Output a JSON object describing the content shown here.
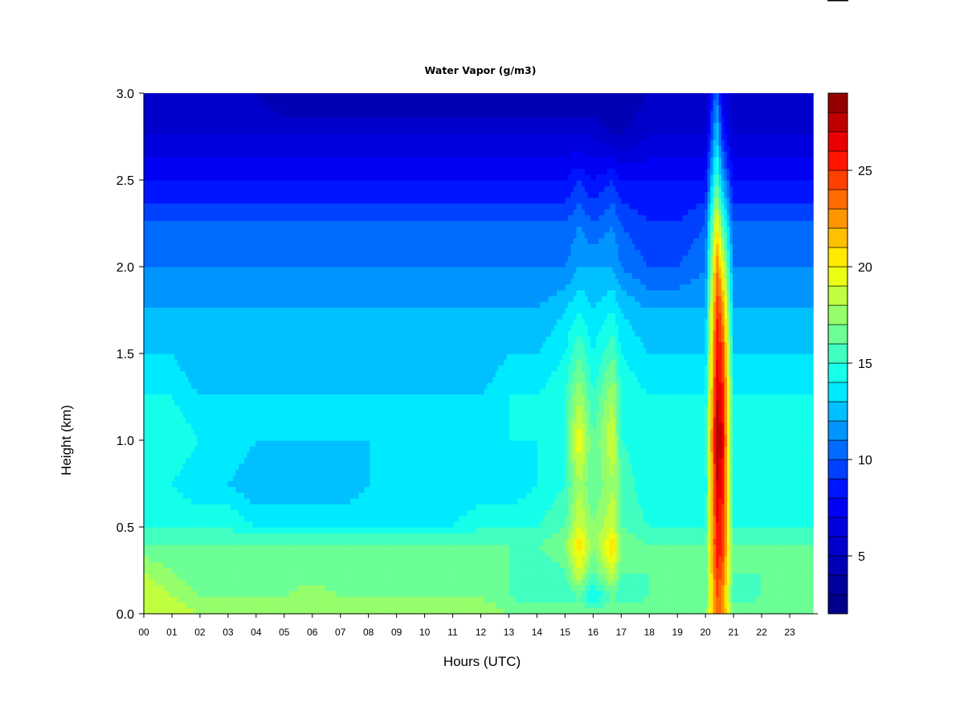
{
  "chart_data": {
    "type": "heatmap",
    "title": "Water Vapor (g/m3)",
    "xlabel": "Hours (UTC)",
    "ylabel": "Height (km)",
    "xlim": [
      0,
      24
    ],
    "ylim": [
      0.0,
      3.0
    ],
    "x_ticks": [
      {
        "value": 0,
        "label": "00"
      },
      {
        "value": 1,
        "label": "01"
      },
      {
        "value": 2,
        "label": "02"
      },
      {
        "value": 3,
        "label": "03"
      },
      {
        "value": 4,
        "label": "04"
      },
      {
        "value": 5,
        "label": "05"
      },
      {
        "value": 6,
        "label": "06"
      },
      {
        "value": 7,
        "label": "07"
      },
      {
        "value": 8,
        "label": "08"
      },
      {
        "value": 9,
        "label": "09"
      },
      {
        "value": 10,
        "label": "10"
      },
      {
        "value": 11,
        "label": "11"
      },
      {
        "value": 12,
        "label": "12"
      },
      {
        "value": 13,
        "label": "13"
      },
      {
        "value": 14,
        "label": "14"
      },
      {
        "value": 15,
        "label": "15"
      },
      {
        "value": 16,
        "label": "16"
      },
      {
        "value": 17,
        "label": "17"
      },
      {
        "value": 18,
        "label": "18"
      },
      {
        "value": 19,
        "label": "19"
      },
      {
        "value": 20,
        "label": "20"
      },
      {
        "value": 21,
        "label": "21"
      },
      {
        "value": 22,
        "label": "22"
      },
      {
        "value": 23,
        "label": "23"
      }
    ],
    "y_ticks": [
      {
        "value": 0.0,
        "label": "0.0"
      },
      {
        "value": 0.5,
        "label": "0.5"
      },
      {
        "value": 1.0,
        "label": "1.0"
      },
      {
        "value": 1.5,
        "label": "1.5"
      },
      {
        "value": 2.0,
        "label": "2.0"
      },
      {
        "value": 2.5,
        "label": "2.5"
      },
      {
        "value": 3.0,
        "label": "3.0"
      }
    ],
    "colorbar": {
      "range": [
        2,
        29
      ],
      "levels": 27,
      "ticks": [
        {
          "value": 5,
          "label": "5"
        },
        {
          "value": 10,
          "label": "10"
        },
        {
          "value": 15,
          "label": "15"
        },
        {
          "value": 20,
          "label": "20"
        },
        {
          "value": 25,
          "label": "25"
        }
      ],
      "colors": [
        "#00007f",
        "#0000bf",
        "#0000ff",
        "#0080ff",
        "#00ffff",
        "#80ff80",
        "#ffff00",
        "#ff8000",
        "#ff0000",
        "#7f0000"
      ]
    },
    "x": [
      0,
      1,
      2,
      3,
      4,
      5,
      6,
      7,
      8,
      9,
      10,
      11,
      12,
      13,
      14,
      15,
      15.5,
      16,
      16.7,
      17,
      18,
      19,
      20,
      20.4,
      20.6,
      21,
      22,
      23.85
    ],
    "y": [
      0.0,
      0.1,
      0.25,
      0.4,
      0.5,
      0.75,
      1.0,
      1.25,
      1.5,
      1.75,
      2.0,
      2.25,
      2.5,
      2.75,
      3.0
    ],
    "z": [
      [
        19,
        19,
        18,
        18,
        18,
        18,
        18,
        18,
        18,
        18,
        18,
        18,
        18,
        17,
        17,
        17,
        17,
        17,
        17,
        17,
        17,
        17,
        17,
        24,
        23,
        17,
        17,
        17
      ],
      [
        19,
        18,
        17,
        17,
        17,
        17,
        18,
        17,
        17,
        17,
        17,
        17,
        17,
        16,
        15,
        15,
        16,
        14,
        16,
        15,
        16,
        16,
        16,
        24,
        23,
        15,
        16,
        16
      ],
      [
        18,
        17,
        16,
        16,
        16,
        16,
        16,
        16,
        16,
        16,
        16,
        16,
        16,
        16,
        15,
        16,
        19,
        16,
        19,
        16,
        16,
        16,
        16,
        25,
        24,
        16,
        16,
        16
      ],
      [
        16,
        16,
        16,
        16,
        16,
        16,
        16,
        16,
        16,
        16,
        16,
        16,
        16,
        16,
        16,
        17,
        21,
        17,
        21,
        17,
        16,
        16,
        16,
        26,
        25,
        16,
        16,
        16
      ],
      [
        15,
        15,
        15,
        15,
        14,
        14,
        14,
        14,
        14,
        14,
        14,
        14,
        15,
        15,
        15,
        16,
        19,
        17,
        19,
        16,
        15,
        15,
        15,
        26,
        25,
        15,
        15,
        15
      ],
      [
        14,
        14,
        13,
        13,
        12,
        12,
        12,
        12,
        13,
        13,
        13,
        13,
        13,
        13,
        14,
        15,
        18,
        16,
        18,
        16,
        14,
        14,
        14,
        27,
        26,
        14,
        14,
        14
      ],
      [
        15,
        15,
        14,
        14,
        13,
        13,
        13,
        13,
        13,
        13,
        13,
        13,
        13,
        14,
        14,
        15,
        20,
        16,
        19,
        15,
        14,
        14,
        15,
        28,
        27,
        14,
        15,
        15
      ],
      [
        14,
        14,
        13,
        13,
        13,
        13,
        13,
        13,
        13,
        13,
        13,
        13,
        13,
        14,
        14,
        15,
        18,
        15,
        18,
        15,
        14,
        14,
        14,
        27,
        26,
        14,
        14,
        14
      ],
      [
        13,
        13,
        12,
        12,
        12,
        12,
        12,
        12,
        12,
        12,
        12,
        12,
        12,
        13,
        13,
        14,
        16,
        14,
        16,
        14,
        13,
        13,
        13,
        26,
        25,
        13,
        13,
        13
      ],
      [
        12,
        12,
        12,
        12,
        12,
        12,
        12,
        12,
        12,
        12,
        12,
        12,
        12,
        12,
        12,
        13,
        14,
        13,
        14,
        13,
        12,
        12,
        12,
        25,
        23,
        12,
        12,
        12
      ],
      [
        11,
        11,
        11,
        11,
        11,
        11,
        11,
        11,
        11,
        11,
        11,
        11,
        11,
        11,
        11,
        11,
        12,
        12,
        12,
        11,
        10,
        10,
        11,
        23,
        20,
        11,
        11,
        11
      ],
      [
        10,
        10,
        10,
        10,
        10,
        10,
        10,
        10,
        10,
        10,
        10,
        10,
        10,
        10,
        10,
        10,
        11,
        10,
        11,
        10,
        9,
        9,
        10,
        20,
        16,
        10,
        10,
        10
      ],
      [
        8,
        8,
        8,
        8,
        8,
        8,
        8,
        8,
        8,
        8,
        8,
        8,
        8,
        8,
        8,
        8,
        9,
        8,
        9,
        8,
        8,
        8,
        8,
        16,
        12,
        8,
        8,
        8
      ],
      [
        6,
        6,
        6,
        6,
        6,
        6,
        6,
        6,
        6,
        6,
        6,
        6,
        6,
        6,
        6,
        6,
        6,
        6,
        5,
        5,
        6,
        6,
        6,
        13,
        9,
        6,
        6,
        6
      ],
      [
        5,
        5,
        5,
        5,
        5,
        4,
        4,
        4,
        4,
        4,
        4,
        4,
        4,
        4,
        4,
        4,
        4,
        4,
        4,
        4,
        5,
        5,
        5,
        11,
        7,
        5,
        5,
        5
      ]
    ]
  }
}
